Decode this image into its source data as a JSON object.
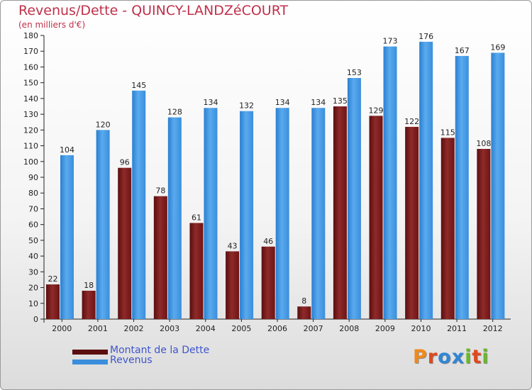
{
  "title": "Revenus/Dette - QUINCY-LANDZéCOURT",
  "subtitle": "(en milliers d'€)",
  "colors": {
    "debt": "#7e1a1a",
    "debt_light": "#962f2f",
    "revenue": "#2f86d6",
    "revenue_light": "#55a8ec",
    "text": "#222222",
    "title": "#c0304a",
    "legend_text": "#3f55cc"
  },
  "legend": {
    "debt_label": "Montant de la Dette",
    "revenue_label": "Revenus"
  },
  "logo": {
    "letters": [
      "P",
      "r",
      "o",
      "x",
      "i",
      "t",
      "i"
    ],
    "colors": [
      "#f08a1a",
      "#e04a1c",
      "#2f86d6",
      "#2f86d6",
      "#6ab82a",
      "#e04a1c",
      "#6ab82a"
    ]
  },
  "chart_data": {
    "type": "bar",
    "title": "Revenus/Dette - QUINCY-LANDZéCOURT",
    "ylabel": "(en milliers d'€)",
    "xlabel": "",
    "ylim": [
      0,
      180
    ],
    "ytick_step": 10,
    "grid": false,
    "legend_position": "bottom-left",
    "categories": [
      "2000",
      "2001",
      "2002",
      "2003",
      "2004",
      "2005",
      "2006",
      "2007",
      "2008",
      "2009",
      "2010",
      "2011",
      "2012"
    ],
    "series": [
      {
        "name": "Montant de la Dette",
        "values": [
          22,
          18,
          96,
          78,
          61,
          43,
          46,
          8,
          135,
          129,
          122,
          115,
          108
        ]
      },
      {
        "name": "Revenus",
        "values": [
          104,
          120,
          145,
          128,
          134,
          132,
          134,
          134,
          153,
          173,
          176,
          167,
          169
        ]
      }
    ]
  }
}
